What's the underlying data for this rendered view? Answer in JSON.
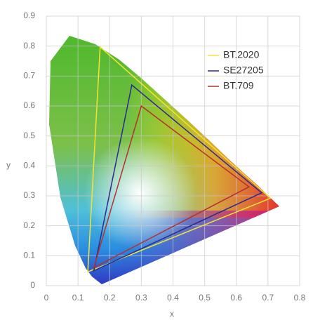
{
  "chart_data": {
    "type": "line",
    "x_label": "x",
    "y_label": "y",
    "xlim": [
      0,
      0.8
    ],
    "ylim": [
      0,
      0.9
    ],
    "xticks": [
      0,
      0.1,
      0.2,
      0.3,
      0.4,
      0.5,
      0.6,
      0.7,
      0.8
    ],
    "yticks": [
      0,
      0.1,
      0.2,
      0.3,
      0.4,
      0.5,
      0.6,
      0.7,
      0.8,
      0.9
    ],
    "grid": true,
    "legend": "upper right",
    "series": [
      {
        "name": "BT.2020",
        "color": "#f2e436",
        "x": [
          0.708,
          0.17,
          0.131
        ],
        "values": [
          0.292,
          0.797,
          0.046
        ]
      },
      {
        "name": "SE27205",
        "color": "#2b2b8c",
        "x": [
          0.68,
          0.27,
          0.15
        ],
        "values": [
          0.31,
          0.67,
          0.05
        ]
      },
      {
        "name": "BT.709",
        "color": "#b3322e",
        "x": [
          0.64,
          0.3,
          0.15
        ],
        "values": [
          0.33,
          0.6,
          0.06
        ]
      }
    ]
  }
}
